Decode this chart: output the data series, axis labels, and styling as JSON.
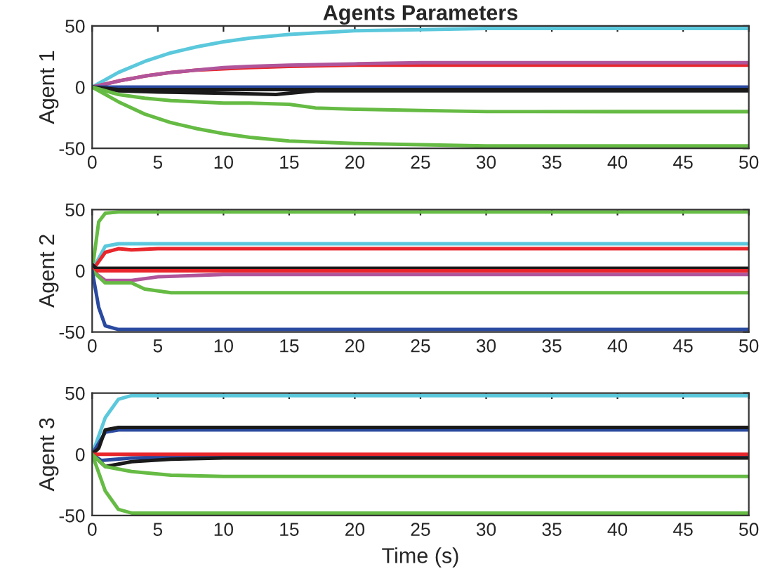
{
  "chart_data": [
    {
      "type": "line",
      "title": "Agents Parameters",
      "ylabel": "Agent 1",
      "xlim": [
        0,
        50
      ],
      "ylim": [
        -50,
        50
      ],
      "xticks": [
        0,
        5,
        10,
        15,
        20,
        25,
        30,
        35,
        40,
        45,
        50
      ],
      "yticks": [
        -50,
        0,
        50
      ],
      "grid": false,
      "line_style": "solid",
      "marker": "none",
      "series": [
        {
          "color": "#5bc8dc",
          "x": [
            0,
            2,
            4,
            6,
            8,
            10,
            12,
            15,
            20,
            25,
            30,
            40,
            50
          ],
          "values": [
            0,
            12,
            21,
            28,
            33,
            37,
            40,
            43,
            46,
            47,
            48,
            48,
            48
          ]
        },
        {
          "color": "#e8262b",
          "x": [
            0,
            2,
            4,
            6,
            8,
            10,
            12,
            15,
            20,
            25,
            30,
            40,
            50
          ],
          "values": [
            0,
            5,
            9,
            12,
            14,
            15,
            16,
            17,
            18,
            18,
            18,
            18,
            18
          ]
        },
        {
          "color": "#b0559b",
          "x": [
            0,
            2,
            4,
            6,
            8,
            10,
            12,
            15,
            20,
            25,
            30,
            40,
            50
          ],
          "values": [
            0,
            5,
            9,
            12,
            14,
            16,
            17,
            18,
            19,
            20,
            20,
            20,
            20
          ]
        },
        {
          "color": "#2a4aa0",
          "x": [
            0,
            50
          ],
          "values": [
            0,
            0
          ]
        },
        {
          "color": "#1a1a1a",
          "x": [
            0,
            2,
            5,
            10,
            14,
            15,
            17,
            20,
            50
          ],
          "values": [
            0,
            -3,
            -4,
            -5,
            -6,
            -5,
            -3,
            -3,
            -3
          ]
        },
        {
          "color": "#1a1a1a",
          "x": [
            0,
            2,
            5,
            10,
            15,
            20,
            50
          ],
          "values": [
            0,
            -2,
            -2,
            -2,
            -2,
            -2,
            -2
          ]
        },
        {
          "color": "#66bb44",
          "x": [
            0,
            2,
            4,
            6,
            8,
            10,
            12,
            15,
            17,
            20,
            25,
            30,
            40,
            50
          ],
          "values": [
            0,
            -6,
            -9,
            -11,
            -12,
            -13,
            -13,
            -14,
            -17,
            -18,
            -19,
            -20,
            -20,
            -20
          ]
        },
        {
          "color": "#66bb44",
          "x": [
            0,
            2,
            4,
            6,
            8,
            10,
            12,
            15,
            20,
            25,
            30,
            40,
            50
          ],
          "values": [
            0,
            -12,
            -22,
            -29,
            -34,
            -38,
            -41,
            -44,
            -46,
            -47,
            -48,
            -48,
            -48
          ]
        }
      ]
    },
    {
      "type": "line",
      "ylabel": "Agent 2",
      "xlim": [
        0,
        50
      ],
      "ylim": [
        -50,
        50
      ],
      "xticks": [
        0,
        5,
        10,
        15,
        20,
        25,
        30,
        35,
        40,
        45,
        50
      ],
      "yticks": [
        -50,
        0,
        50
      ],
      "grid": false,
      "line_style": "solid",
      "marker": "none",
      "series": [
        {
          "color": "#66bb44",
          "x": [
            0,
            0.5,
            1,
            2,
            50
          ],
          "values": [
            0,
            40,
            47,
            48,
            48
          ]
        },
        {
          "color": "#5bc8dc",
          "x": [
            0,
            1,
            2,
            50
          ],
          "values": [
            0,
            20,
            22,
            22
          ]
        },
        {
          "color": "#e8262b",
          "x": [
            0,
            1,
            2,
            3,
            5,
            50
          ],
          "values": [
            0,
            15,
            18,
            17,
            18,
            18
          ]
        },
        {
          "color": "#1a1a1a",
          "x": [
            0,
            0.3,
            50
          ],
          "values": [
            5,
            2,
            2
          ]
        },
        {
          "color": "#b0559b",
          "x": [
            0,
            1,
            3,
            5,
            10,
            50
          ],
          "values": [
            0,
            -8,
            -8,
            -5,
            -3,
            -3
          ]
        },
        {
          "color": "#e8262b",
          "x": [
            0,
            50
          ],
          "values": [
            0,
            0
          ]
        },
        {
          "color": "#66bb44",
          "x": [
            0,
            1,
            3,
            4,
            6,
            50
          ],
          "values": [
            0,
            -10,
            -10,
            -15,
            -18,
            -18
          ]
        },
        {
          "color": "#2a4aa0",
          "x": [
            0,
            0.5,
            1,
            2,
            50
          ],
          "values": [
            0,
            -30,
            -45,
            -48,
            -48
          ]
        }
      ]
    },
    {
      "type": "line",
      "ylabel": "Agent 3",
      "xlabel": "Time (s)",
      "xlim": [
        0,
        50
      ],
      "ylim": [
        -50,
        50
      ],
      "xticks": [
        0,
        5,
        10,
        15,
        20,
        25,
        30,
        35,
        40,
        45,
        50
      ],
      "yticks": [
        -50,
        0,
        50
      ],
      "grid": false,
      "line_style": "solid",
      "marker": "none",
      "series": [
        {
          "color": "#5bc8dc",
          "x": [
            0,
            1,
            2,
            3,
            50
          ],
          "values": [
            0,
            30,
            45,
            48,
            48
          ]
        },
        {
          "color": "#2a4aa0",
          "x": [
            0,
            1,
            2,
            50
          ],
          "values": [
            0,
            18,
            20,
            20
          ]
        },
        {
          "color": "#1a1a1a",
          "x": [
            0,
            0.5,
            1,
            2,
            50
          ],
          "values": [
            0,
            5,
            20,
            22,
            22
          ]
        },
        {
          "color": "#2a4aa0",
          "x": [
            0,
            0.7,
            3,
            10,
            50
          ],
          "values": [
            0,
            -5,
            -3,
            -1,
            -1
          ]
        },
        {
          "color": "#e8262b",
          "x": [
            0,
            50
          ],
          "values": [
            0,
            0
          ]
        },
        {
          "color": "#1a1a1a",
          "x": [
            0,
            1,
            3,
            6,
            10,
            50
          ],
          "values": [
            0,
            -10,
            -6,
            -4,
            -3,
            -3
          ]
        },
        {
          "color": "#66bb44",
          "x": [
            0,
            1,
            3,
            6,
            10,
            50
          ],
          "values": [
            0,
            -10,
            -14,
            -17,
            -18,
            -18
          ]
        },
        {
          "color": "#66bb44",
          "x": [
            0,
            1,
            2,
            3,
            50
          ],
          "values": [
            0,
            -30,
            -45,
            -48,
            -48
          ]
        }
      ]
    }
  ]
}
